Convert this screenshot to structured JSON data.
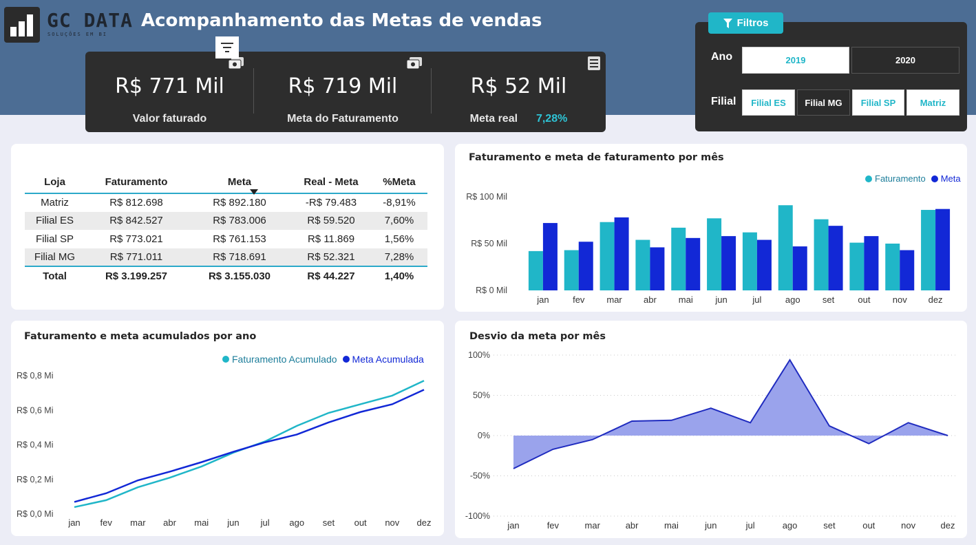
{
  "header": {
    "logo_name": "GC DATA",
    "logo_tagline": "SOLUÇÕES EM BI",
    "title": "Acompanhamento das Metas de vendas"
  },
  "kpis": {
    "faturado_value": "R$ 771 Mil",
    "faturado_label": "Valor faturado",
    "meta_value": "R$ 719 Mil",
    "meta_label": "Meta do Faturamento",
    "real_value": "R$ 52 Mil",
    "real_label": "Meta real",
    "real_pct": "7,28%"
  },
  "filters": {
    "button_label": "Filtros",
    "ano_label": "Ano",
    "ano_options": [
      "2019",
      "2020"
    ],
    "filial_label": "Filial",
    "filial_options": [
      "Filial ES",
      "Filial MG",
      "Filial SP",
      "Matriz"
    ],
    "selected_filial": "Filial MG"
  },
  "table": {
    "headers": [
      "Loja",
      "Faturamento",
      "Meta",
      "Real - Meta",
      "%Meta"
    ],
    "rows": [
      [
        "Matriz",
        "R$ 812.698",
        "R$ 892.180",
        "-R$ 79.483",
        "-8,91%"
      ],
      [
        "Filial ES",
        "R$ 842.527",
        "R$ 783.006",
        "R$ 59.520",
        "7,60%"
      ],
      [
        "Filial SP",
        "R$ 773.021",
        "R$ 761.153",
        "R$ 11.869",
        "1,56%"
      ],
      [
        "Filial MG",
        "R$ 771.011",
        "R$ 718.691",
        "R$ 52.321",
        "7,28%"
      ]
    ],
    "total": [
      "Total",
      "R$ 3.199.257",
      "R$ 3.155.030",
      "R$ 44.227",
      "1,40%"
    ]
  },
  "colors": {
    "faturamento": "#20b6c8",
    "meta": "#1228d6",
    "desvio_fill": "#9aa3ec",
    "desvio_line": "#1f2bbf",
    "banner": "#4c6d94"
  },
  "chart_data": [
    {
      "type": "bar",
      "title": "Faturamento e meta de faturamento por mês",
      "categories": [
        "jan",
        "fev",
        "mar",
        "abr",
        "mai",
        "jun",
        "jul",
        "ago",
        "set",
        "out",
        "nov",
        "dez"
      ],
      "series": [
        {
          "name": "Faturamento",
          "values": [
            42,
            43,
            73,
            54,
            67,
            77,
            62,
            91,
            76,
            51,
            50,
            86
          ]
        },
        {
          "name": "Meta",
          "values": [
            72,
            52,
            78,
            46,
            56,
            58,
            54,
            47,
            69,
            58,
            43,
            87
          ]
        }
      ],
      "yticks": [
        "R$ 0 Mil",
        "R$ 50 Mil",
        "R$ 100 Mil"
      ],
      "ylim": [
        0,
        100
      ],
      "legend": "top-right"
    },
    {
      "type": "line",
      "title": "Faturamento e meta acumulados por ano",
      "categories": [
        "jan",
        "fev",
        "mar",
        "abr",
        "mai",
        "jun",
        "jul",
        "ago",
        "set",
        "out",
        "nov",
        "dez"
      ],
      "series": [
        {
          "name": "Faturamento Acumulado",
          "values": [
            0.04,
            0.08,
            0.155,
            0.21,
            0.275,
            0.355,
            0.42,
            0.51,
            0.585,
            0.635,
            0.685,
            0.771
          ]
        },
        {
          "name": "Meta Acumulada",
          "values": [
            0.07,
            0.12,
            0.195,
            0.245,
            0.3,
            0.36,
            0.415,
            0.46,
            0.53,
            0.59,
            0.635,
            0.719
          ]
        }
      ],
      "yticks": [
        "R$ 0,0 Mi",
        "R$ 0,2 Mi",
        "R$ 0,4 Mi",
        "R$ 0,6 Mi",
        "R$ 0,8 Mi"
      ],
      "ylim": [
        0,
        0.8
      ],
      "legend": "top-right"
    },
    {
      "type": "area",
      "title": "Desvio da meta por mês",
      "categories": [
        "jan",
        "fev",
        "mar",
        "abr",
        "mai",
        "jun",
        "jul",
        "ago",
        "set",
        "out",
        "nov",
        "dez"
      ],
      "values": [
        -41,
        -17,
        -5,
        18,
        19,
        34,
        16,
        94,
        12,
        -10,
        16,
        0
      ],
      "yticks": [
        "-100%",
        "-50%",
        "0%",
        "50%",
        "100%"
      ],
      "ylim": [
        -100,
        100
      ],
      "grid": true
    }
  ]
}
